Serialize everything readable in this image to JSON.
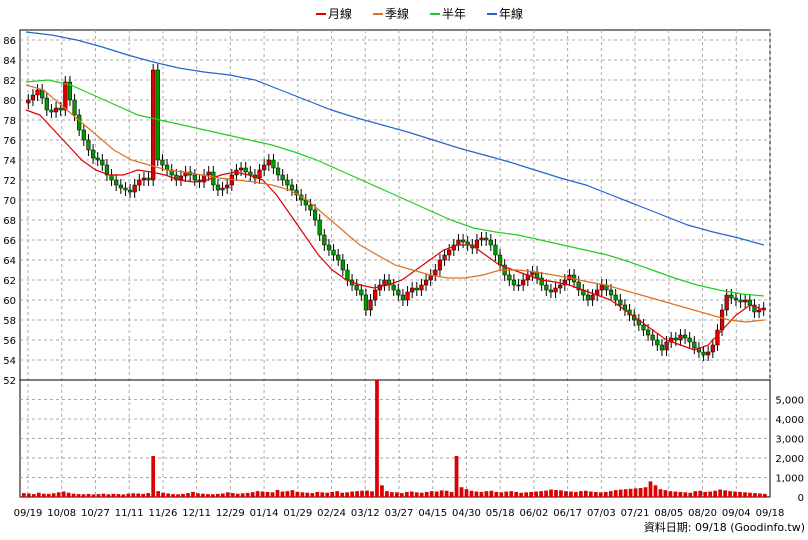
{
  "legend": [
    {
      "label": "月線",
      "color": "#dd0000"
    },
    {
      "label": "季線",
      "color": "#e07020"
    },
    {
      "label": "半年",
      "color": "#22cc22"
    },
    {
      "label": "年線",
      "color": "#2266cc"
    }
  ],
  "footer": {
    "text": "資料日期: 09/18 (Goodinfo.tw)"
  },
  "chart_data": [
    {
      "type": "candlestick",
      "title": "",
      "ylim": [
        52,
        87
      ],
      "yticks": [
        54,
        56,
        58,
        60,
        62,
        64,
        66,
        68,
        70,
        72,
        74,
        76,
        78,
        80,
        82,
        84,
        86
      ],
      "yticks_shown": [
        52,
        54,
        56,
        58,
        60,
        62,
        64,
        66,
        68,
        70,
        72,
        74,
        76,
        78,
        80,
        82,
        84,
        86
      ],
      "grid": true,
      "x_labels": [
        "09/19",
        "10/08",
        "10/27",
        "11/11",
        "11/26",
        "12/11",
        "12/29",
        "01/14",
        "01/29",
        "02/24",
        "03/12",
        "03/27",
        "04/15",
        "04/30",
        "05/18",
        "06/02",
        "06/17",
        "07/03",
        "07/21",
        "08/05",
        "08/20",
        "09/04",
        "09/18"
      ],
      "close": [
        80.0,
        80.5,
        81.0,
        80.2,
        79.0,
        78.8,
        79.2,
        79.0,
        81.8,
        80.0,
        78.5,
        77.0,
        76.0,
        75.0,
        74.2,
        74.0,
        73.5,
        72.5,
        72.0,
        71.5,
        71.2,
        71.0,
        70.8,
        71.5,
        72.0,
        72.2,
        72.0,
        83.0,
        74.0,
        73.5,
        73.0,
        72.5,
        72.0,
        72.4,
        72.8,
        72.5,
        72.0,
        71.8,
        72.5,
        72.8,
        71.5,
        71.0,
        71.2,
        71.5,
        72.5,
        73.0,
        73.2,
        72.8,
        72.5,
        72.2,
        73.0,
        73.5,
        74.0,
        73.2,
        72.5,
        72.0,
        71.5,
        71.0,
        70.5,
        70.0,
        69.5,
        69.0,
        68.0,
        66.5,
        65.5,
        65.0,
        64.5,
        64.0,
        63.0,
        62.0,
        61.5,
        61.0,
        60.5,
        59.0,
        60.0,
        61.0,
        61.5,
        62.0,
        61.5,
        61.0,
        60.5,
        60.0,
        60.8,
        61.2,
        61.0,
        61.5,
        62.0,
        62.5,
        63.0,
        64.0,
        64.5,
        65.0,
        65.5,
        66.0,
        65.8,
        65.5,
        65.2,
        66.0,
        66.2,
        66.0,
        65.5,
        64.5,
        63.5,
        62.5,
        62.0,
        61.5,
        61.5,
        62.0,
        62.5,
        62.8,
        62.2,
        61.5,
        61.0,
        60.8,
        61.2,
        61.5,
        62.0,
        62.5,
        61.8,
        61.0,
        60.5,
        60.0,
        60.5,
        61.0,
        61.5,
        61.0,
        60.5,
        60.0,
        59.5,
        59.0,
        58.5,
        58.0,
        57.5,
        57.0,
        56.5,
        56.0,
        55.5,
        55.0,
        55.8,
        56.2,
        56.0,
        56.5,
        56.2,
        55.8,
        55.2,
        54.8,
        54.5,
        54.8,
        55.5,
        57.0,
        59.0,
        60.5,
        60.2,
        60.0,
        59.8,
        60.0,
        59.5,
        58.8,
        59.0,
        59.2
      ],
      "ma": {
        "月線": [
          79.0,
          78.5,
          77.0,
          75.5,
          74.0,
          73.0,
          72.5,
          72.5,
          73.0,
          72.8,
          72.5,
          72.0,
          71.8,
          72.0,
          72.5,
          72.8,
          72.5,
          72.0,
          70.5,
          68.5,
          66.5,
          64.5,
          63.0,
          62.0,
          61.5,
          61.2,
          61.5,
          62.0,
          63.0,
          64.0,
          65.0,
          65.5,
          65.5,
          64.5,
          63.5,
          63.0,
          62.5,
          62.0,
          61.8,
          61.5,
          61.0,
          60.5,
          60.0,
          59.0,
          58.0,
          57.0,
          56.0,
          55.5,
          55.0,
          55.5,
          57.0,
          58.5,
          59.5,
          59.0
        ],
        "季線": [
          81.5,
          81.0,
          79.5,
          78.0,
          76.5,
          75.0,
          74.0,
          73.5,
          73.0,
          72.8,
          72.5,
          72.2,
          72.0,
          71.8,
          71.5,
          71.0,
          70.0,
          68.5,
          67.0,
          65.5,
          64.5,
          63.5,
          63.0,
          62.5,
          62.2,
          62.2,
          62.5,
          63.0,
          63.0,
          62.8,
          62.5,
          62.2,
          61.8,
          61.5,
          61.0,
          60.5,
          60.0,
          59.5,
          59.0,
          58.5,
          58.0,
          57.8,
          58.0
        ],
        "半年": [
          81.8,
          82.0,
          81.5,
          80.5,
          79.5,
          78.5,
          78.0,
          77.5,
          77.0,
          76.5,
          76.0,
          75.5,
          74.8,
          74.0,
          73.0,
          72.0,
          71.0,
          70.0,
          69.0,
          68.0,
          67.2,
          66.8,
          66.5,
          66.0,
          65.5,
          65.0,
          64.5,
          63.8,
          63.0,
          62.2,
          61.5,
          61.0,
          60.6,
          60.4
        ],
        "年線": [
          86.8,
          86.5,
          86.0,
          85.3,
          84.5,
          83.8,
          83.2,
          82.8,
          82.5,
          82.0,
          81.0,
          80.0,
          79.0,
          78.2,
          77.5,
          76.8,
          76.0,
          75.2,
          74.5,
          73.8,
          73.0,
          72.2,
          71.5,
          70.5,
          69.5,
          68.5,
          67.5,
          66.8,
          66.2,
          65.5
        ]
      }
    },
    {
      "type": "bar",
      "title": "",
      "ylim": [
        0,
        6000
      ],
      "yticks": [
        0,
        1000,
        2000,
        3000,
        4000,
        5000
      ],
      "yticks_labels": [
        "0",
        "1,000",
        "2,000",
        "3,000",
        "4,000",
        "5,000"
      ],
      "values": [
        200,
        180,
        150,
        220,
        170,
        160,
        190,
        240,
        280,
        220,
        170,
        150,
        140,
        160,
        130,
        150,
        170,
        140,
        160,
        150,
        130,
        170,
        190,
        180,
        160,
        200,
        2100,
        300,
        220,
        180,
        150,
        140,
        160,
        200,
        260,
        190,
        170,
        150,
        140,
        160,
        180,
        240,
        200,
        170,
        190,
        210,
        250,
        300,
        280,
        260,
        240,
        360,
        280,
        300,
        350,
        270,
        240,
        220,
        200,
        260,
        240,
        220,
        260,
        300,
        220,
        240,
        280,
        300,
        320,
        330,
        290,
        6000,
        600,
        300,
        250,
        240,
        200,
        260,
        280,
        240,
        220,
        260,
        300,
        280,
        340,
        320,
        260,
        2100,
        500,
        400,
        320,
        280,
        260,
        300,
        320,
        260,
        240,
        280,
        300,
        260,
        220,
        240,
        260,
        280,
        300,
        330,
        380,
        360,
        340,
        300,
        280,
        260,
        300,
        320,
        280,
        260,
        240,
        260,
        300,
        350,
        380,
        400,
        420,
        440,
        460,
        500,
        800,
        600,
        400,
        350,
        300,
        280,
        260,
        240,
        220,
        300,
        320,
        260,
        280,
        320,
        380,
        340,
        300,
        280,
        260,
        240,
        220,
        200,
        180,
        160
      ]
    }
  ]
}
